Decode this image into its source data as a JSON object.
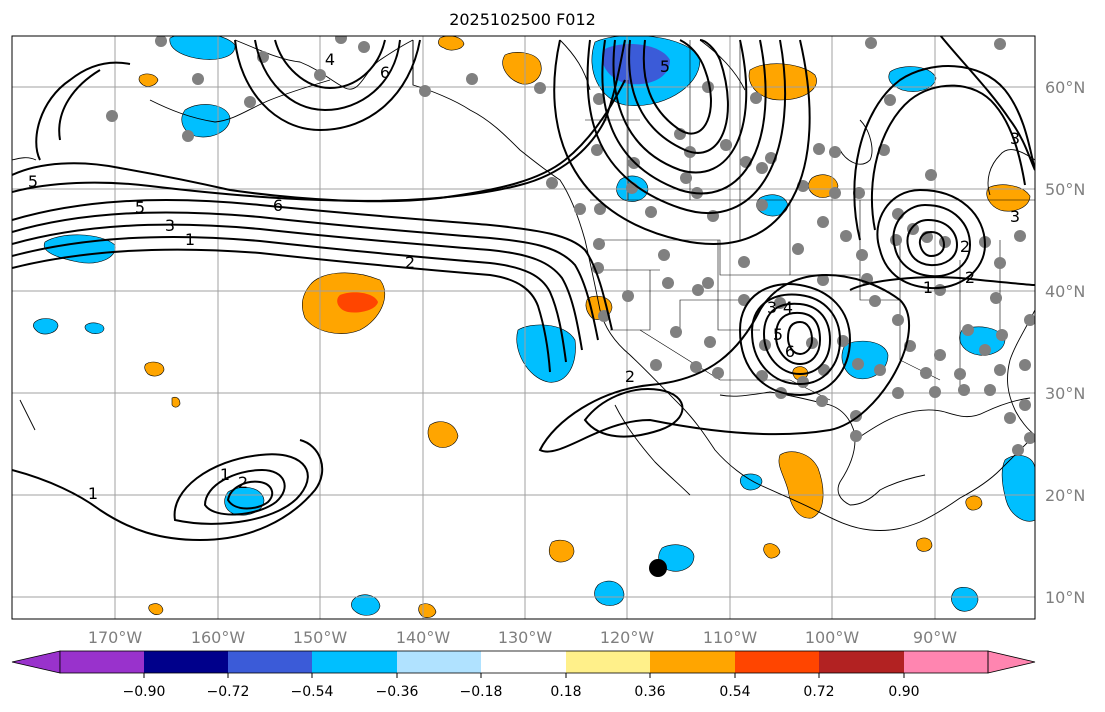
{
  "title": "2025102500 F012",
  "map": {
    "longitude_labels": [
      "170°W",
      "160°W",
      "150°W",
      "140°W",
      "130°W",
      "120°W",
      "110°W",
      "100°W",
      "90°W"
    ],
    "latitude_labels": [
      "60°N",
      "50°N",
      "40°N",
      "30°N",
      "20°N",
      "10°N"
    ],
    "contour_labels": [
      "6",
      "5",
      "6",
      "5",
      "3",
      "1",
      "2",
      "2",
      "1",
      "2",
      "3",
      "4",
      "5",
      "6",
      "1",
      "2",
      "3",
      "4",
      "1",
      "2",
      "3",
      "5"
    ],
    "colors": {
      "gridline": "#a0a0a0",
      "coast": "#000000",
      "contour": "#000000",
      "station_dot": "#808080",
      "marker": "#000000"
    }
  },
  "colorbar": {
    "tick_labels": [
      "−0.90",
      "−0.72",
      "−0.54",
      "−0.36",
      "−0.18",
      "0.18",
      "0.36",
      "0.54",
      "0.72",
      "0.90"
    ],
    "segment_colors": [
      "#9932cc",
      "#00008b",
      "#3b5bd8",
      "#00bfff",
      "#b0e2ff",
      "#ffffff",
      "#fff08a",
      "#ffa500",
      "#ff4500",
      "#b22222",
      "#ff85b0"
    ]
  }
}
